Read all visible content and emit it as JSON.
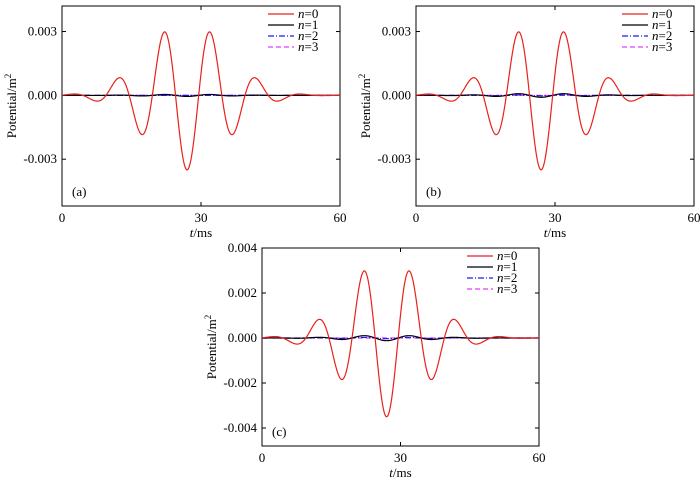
{
  "chart_data": [
    {
      "type": "line",
      "panel_label": "(a)",
      "xlabel_var": "t",
      "xlabel_unit": "/ms",
      "ylabel": "Potential/m",
      "ylabel_sup": "2",
      "xlim": [
        0,
        60
      ],
      "ylim": [
        -0.0052,
        0.0042
      ],
      "xticks": [
        0,
        30,
        60
      ],
      "yticks": [
        -0.003,
        0.0,
        0.003
      ],
      "ytick_labels": [
        "-0.003",
        "0.000",
        "0.003"
      ],
      "legend": {
        "position": "top-right",
        "var": "n"
      },
      "series": [
        {
          "name": "=0",
          "color": "#e8211c",
          "dash": "solid",
          "amp": 0.0035,
          "center": 27.0,
          "sigma": 8.7,
          "freq": 0.1
        },
        {
          "name": "=1",
          "color": "#000000",
          "dash": "solid",
          "amp": 5e-05,
          "center": 27.0,
          "sigma": 9.0,
          "freq": 0.1
        },
        {
          "name": "=2",
          "color": "#1a1aff",
          "dash": "dashdot",
          "amp": 0.0,
          "center": 27.0,
          "sigma": 9.0,
          "freq": 0.1
        },
        {
          "name": "=3",
          "color": "#e83cff",
          "dash": "dash",
          "amp": 0.0,
          "center": 27.0,
          "sigma": 9.0,
          "freq": 0.1
        }
      ]
    },
    {
      "type": "line",
      "panel_label": "(b)",
      "xlabel_var": "t",
      "xlabel_unit": "/ms",
      "ylabel": "Potential/m",
      "ylabel_sup": "2",
      "xlim": [
        0,
        60
      ],
      "ylim": [
        -0.0052,
        0.0042
      ],
      "xticks": [
        0,
        30,
        60
      ],
      "yticks": [
        -0.003,
        0.0,
        0.003
      ],
      "ytick_labels": [
        "-0.003",
        "0.000",
        "0.003"
      ],
      "legend": {
        "position": "top-right",
        "var": "n"
      },
      "series": [
        {
          "name": "=0",
          "color": "#e8211c",
          "dash": "solid",
          "amp": 0.0035,
          "center": 27.0,
          "sigma": 8.7,
          "freq": 0.1
        },
        {
          "name": "=1",
          "color": "#000000",
          "dash": "solid",
          "amp": 9e-05,
          "center": 27.0,
          "sigma": 9.0,
          "freq": 0.1
        },
        {
          "name": "=2",
          "color": "#1a1aff",
          "dash": "dashdot",
          "amp": 2e-05,
          "center": 27.0,
          "sigma": 9.0,
          "freq": 0.1
        },
        {
          "name": "=3",
          "color": "#e83cff",
          "dash": "dash",
          "amp": 0.0,
          "center": 27.0,
          "sigma": 9.0,
          "freq": 0.1
        }
      ]
    },
    {
      "type": "line",
      "panel_label": "(c)",
      "xlabel_var": "t",
      "xlabel_unit": "/ms",
      "ylabel": "Potential/m",
      "ylabel_sup": "2",
      "xlim": [
        0,
        60
      ],
      "ylim": [
        -0.0048,
        0.004
      ],
      "xticks": [
        0,
        30,
        60
      ],
      "yticks": [
        -0.004,
        -0.002,
        0.0,
        0.002,
        0.004
      ],
      "ytick_labels": [
        "-0.004",
        "-0.002",
        "0.000",
        "0.002",
        "0.004"
      ],
      "legend": {
        "position": "top-right",
        "var": "n"
      },
      "series": [
        {
          "name": "=0",
          "color": "#e8211c",
          "dash": "solid",
          "amp": 0.0035,
          "center": 27.0,
          "sigma": 8.7,
          "freq": 0.1
        },
        {
          "name": "=1",
          "color": "#000000",
          "dash": "solid",
          "amp": 0.00012,
          "center": 27.0,
          "sigma": 9.0,
          "freq": 0.1
        },
        {
          "name": "=2",
          "color": "#1a1aff",
          "dash": "dashdot",
          "amp": 3e-05,
          "center": 27.0,
          "sigma": 9.0,
          "freq": 0.1
        },
        {
          "name": "=3",
          "color": "#e83cff",
          "dash": "dash",
          "amp": 0.0,
          "center": 27.0,
          "sigma": 9.0,
          "freq": 0.1
        }
      ]
    }
  ]
}
